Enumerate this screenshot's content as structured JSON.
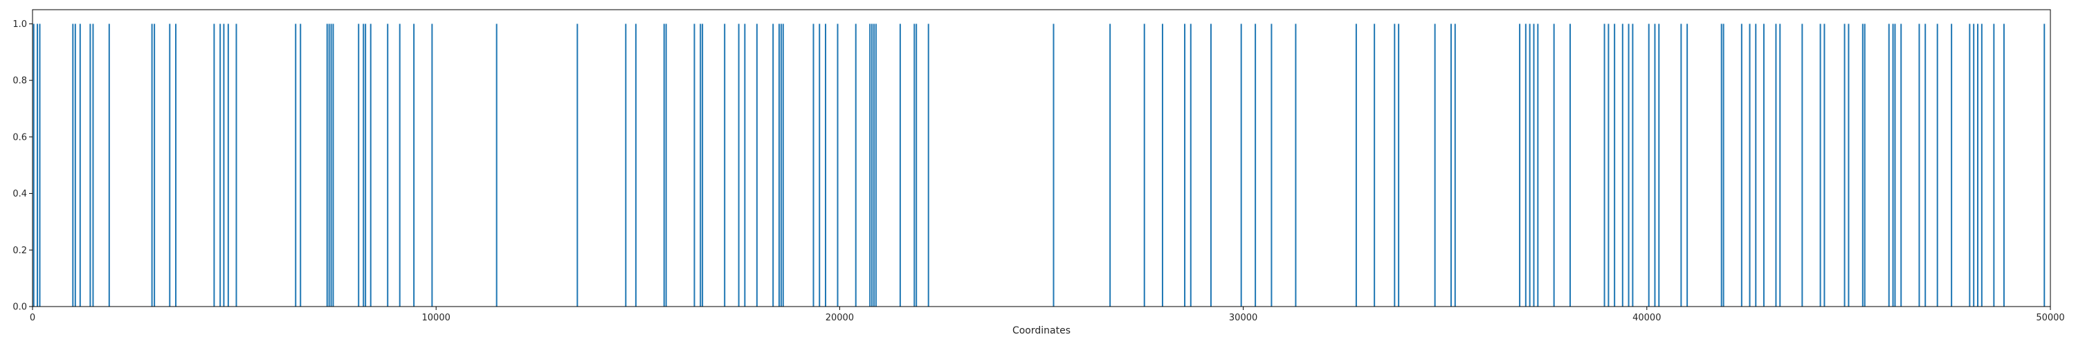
{
  "chart_data": {
    "type": "bar",
    "xlabel": "Coordinates",
    "ylabel": "",
    "xlim": [
      0,
      50000
    ],
    "ylim": [
      0,
      1.05
    ],
    "grid": false,
    "x_ticks": [
      "0",
      "10000",
      "20000",
      "30000",
      "40000",
      "50000"
    ],
    "y_ticks": [
      "0.0",
      "0.2",
      "0.4",
      "0.6",
      "0.8",
      "1.0"
    ],
    "bar_color": "#1f77b4",
    "series": [
      {
        "x": [
          30,
          120,
          180,
          1000,
          1060,
          1180,
          1430,
          1500,
          1900,
          2960,
          3020,
          3400,
          3550,
          4500,
          4650,
          4740,
          4850,
          5050,
          6520,
          6640,
          7300,
          7350,
          7400,
          7450,
          8080,
          8200,
          8250,
          8380,
          8800,
          9100,
          9450,
          9900,
          11500,
          13500,
          14700,
          14950,
          15650,
          15700,
          16400,
          16550,
          16600,
          17150,
          17500,
          17650,
          17950,
          18350,
          18500,
          18550,
          18600,
          19350,
          19500,
          19650,
          19950,
          20400,
          20750,
          20800,
          20850,
          20900,
          21500,
          21850,
          21900,
          22200,
          25300,
          26700,
          27550,
          28000,
          28550,
          28700,
          29200,
          29950,
          30300,
          30700,
          31300,
          32800,
          33250,
          33750,
          33850,
          34750,
          35150,
          35250,
          36850,
          37000,
          37100,
          37200,
          37300,
          37700,
          38100,
          38950,
          39050,
          39200,
          39400,
          39550,
          39650,
          40050,
          40200,
          40300,
          40850,
          41000,
          41850,
          41900,
          42350,
          42550,
          42700,
          42900,
          43200,
          43300,
          43850,
          44300,
          44400,
          44900,
          45000,
          45350,
          45400,
          46000,
          46100,
          46150,
          46300,
          46750,
          46900,
          47200,
          47550,
          48000,
          48100,
          48200,
          48300,
          48600,
          48850,
          49850
        ],
        "values": [
          1,
          1,
          1,
          1,
          1,
          1,
          1,
          1,
          1,
          1,
          1,
          1,
          1,
          1,
          1,
          1,
          1,
          1,
          1,
          1,
          1,
          1,
          1,
          1,
          1,
          1,
          1,
          1,
          1,
          1,
          1,
          1,
          1,
          1,
          1,
          1,
          1,
          1,
          1,
          1,
          1,
          1,
          1,
          1,
          1,
          1,
          1,
          1,
          1,
          1,
          1,
          1,
          1,
          1,
          1,
          1,
          1,
          1,
          1,
          1,
          1,
          1,
          1,
          1,
          1,
          1,
          1,
          1,
          1,
          1,
          1,
          1,
          1,
          1,
          1,
          1,
          1,
          1,
          1,
          1,
          1,
          1,
          1,
          1,
          1,
          1,
          1,
          1,
          1,
          1,
          1,
          1,
          1,
          1,
          1,
          1,
          1,
          1,
          1,
          1,
          1,
          1,
          1,
          1,
          1,
          1,
          1,
          1,
          1,
          1,
          1,
          1,
          1,
          1,
          1,
          1,
          1,
          1,
          1,
          1,
          1,
          1,
          1,
          1,
          1,
          1,
          1,
          1
        ]
      }
    ]
  }
}
